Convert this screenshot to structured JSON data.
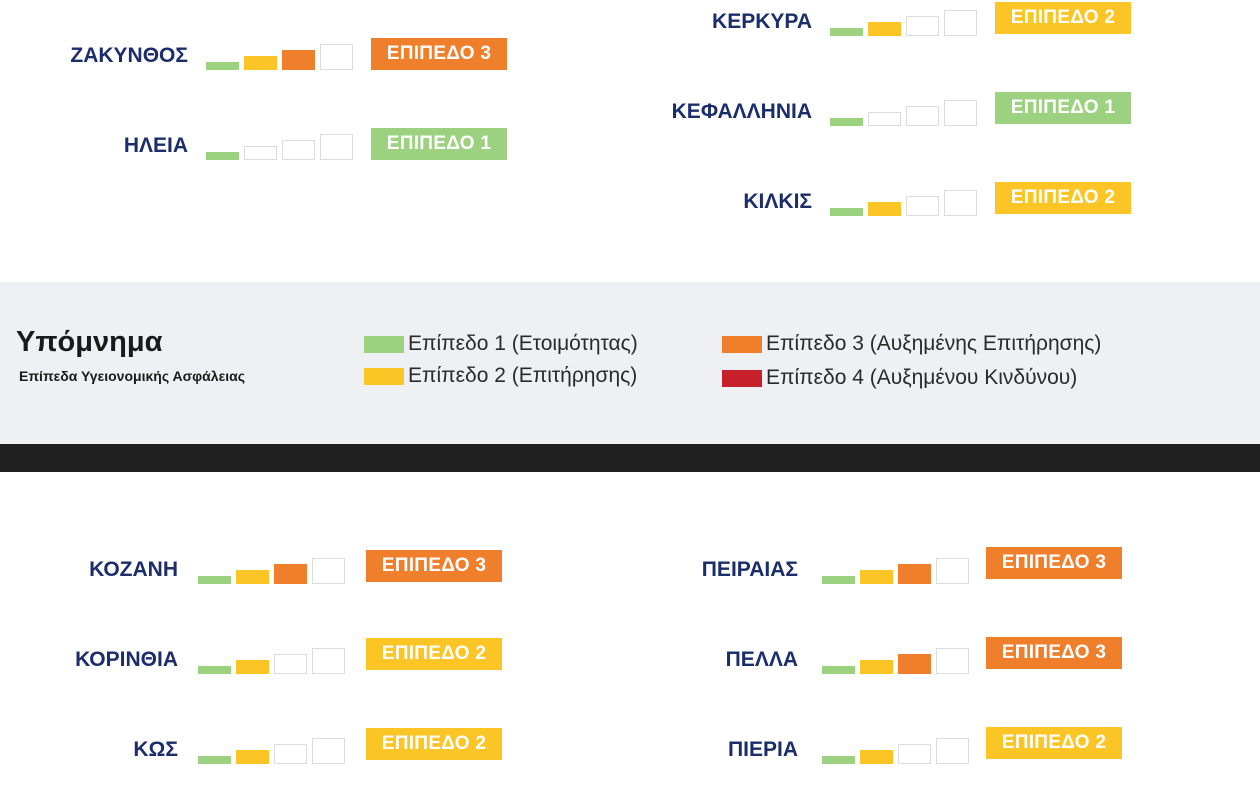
{
  "colors": {
    "level1": "#9cd27f",
    "level2": "#fcc526",
    "level3": "#f07f2c",
    "level4": "#c8202a",
    "navy": "#1c2d6b"
  },
  "regions": [
    {
      "name": "ΖΑΚΥΝΘΟΣ",
      "level": 3,
      "badge": "ΕΠΙΠΕΔΟ 3"
    },
    {
      "name": "ΗΛΕΙΑ",
      "level": 1,
      "badge": "ΕΠΙΠΕΔΟ 1"
    },
    {
      "name": "ΚΕΡΚΥΡΑ",
      "level": 2,
      "badge": "ΕΠΙΠΕΔΟ 2"
    },
    {
      "name": "ΚΕΦΑΛΛΗΝΙΑ",
      "level": 1,
      "badge": "ΕΠΙΠΕΔΟ 1"
    },
    {
      "name": "ΚΙΛΚΙΣ",
      "level": 2,
      "badge": "ΕΠΙΠΕΔΟ 2"
    },
    {
      "name": "ΚΟΖΑΝΗ",
      "level": 3,
      "badge": "ΕΠΙΠΕΔΟ 3"
    },
    {
      "name": "ΚΟΡΙΝΘΙΑ",
      "level": 2,
      "badge": "ΕΠΙΠΕΔΟ 2"
    },
    {
      "name": "ΚΩΣ",
      "level": 2,
      "badge": "ΕΠΙΠΕΔΟ 2"
    },
    {
      "name": "ΠΕΙΡΑΙΑΣ",
      "level": 3,
      "badge": "ΕΠΙΠΕΔΟ 3"
    },
    {
      "name": "ΠΕΛΛΑ",
      "level": 3,
      "badge": "ΕΠΙΠΕΔΟ 3"
    },
    {
      "name": "ΠΙΕΡΙΑ",
      "level": 2,
      "badge": "ΕΠΙΠΕΔΟ 2"
    }
  ],
  "legend": {
    "title": "Υπόμνημα",
    "subtitle": "Επίπεδα Υγειονομικής Ασφάλειας",
    "items": [
      {
        "label": "Επίπεδο 1 (Ετοιμότητας)",
        "level": 1
      },
      {
        "label": "Επίπεδο 2 (Επιτήρησης)",
        "level": 2
      },
      {
        "label": "Επίπεδο 3 (Αυξημένης Επιτήρησης)",
        "level": 3
      },
      {
        "label": "Επίπεδο 4 (Αυξημένου Κινδύνου)",
        "level": 4
      }
    ]
  }
}
